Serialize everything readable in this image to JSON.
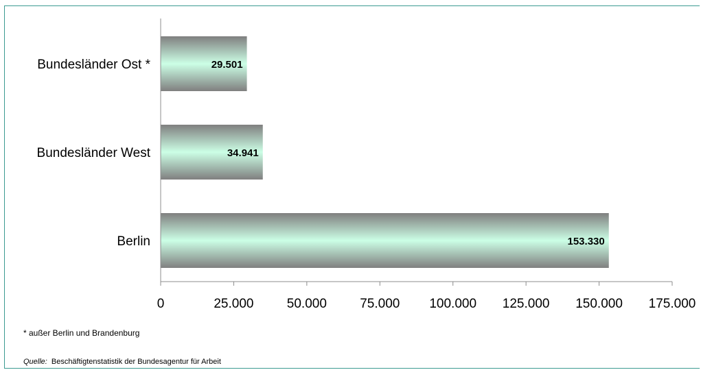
{
  "chart_data": {
    "type": "bar",
    "orientation": "horizontal",
    "categories": [
      "Bundesländer Ost *",
      "Bundesländer West",
      "Berlin"
    ],
    "values": [
      29501,
      34941,
      153330
    ],
    "value_labels": [
      "29.501",
      "34.941",
      "153.330"
    ],
    "xlim": [
      0,
      175000
    ],
    "x_ticks": [
      0,
      25000,
      50000,
      75000,
      100000,
      125000,
      150000,
      175000
    ],
    "x_tick_labels": [
      "0",
      "25.000",
      "50.000",
      "75.000",
      "100.000",
      "125.000",
      "150.000",
      "175.000"
    ],
    "grid": false,
    "legend": "none",
    "bar_colors": {
      "edge": "#7f7f7f",
      "center": "#ccffe6"
    }
  },
  "footnote": "* außer Berlin und Brandenburg",
  "source": {
    "label": "Quelle:",
    "text": "Beschäftigtenstatistik der Bundesagentur für Arbeit"
  }
}
